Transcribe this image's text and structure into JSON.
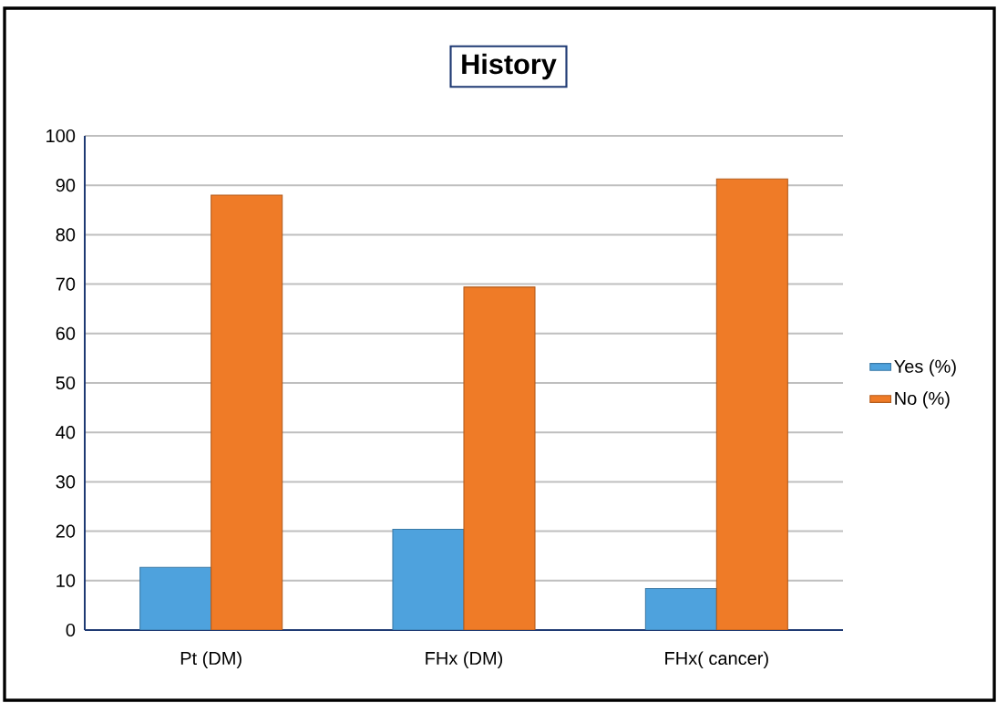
{
  "chart_data": {
    "type": "bar",
    "title": "History",
    "categories": [
      "Pt (DM)",
      "FHx (DM)",
      "FHx( cancer)"
    ],
    "series": [
      {
        "name": "Yes (%)",
        "color": "#4ea2dd",
        "values": [
          12.7,
          20.4,
          8.4
        ]
      },
      {
        "name": "No (%)",
        "color": "#ef7b27",
        "values": [
          88.0,
          69.4,
          91.3
        ]
      }
    ],
    "ylim": [
      0,
      100
    ],
    "yticks": [
      0,
      10,
      20,
      30,
      40,
      50,
      60,
      70,
      80,
      90,
      100
    ],
    "grid": "y",
    "legend": "right"
  }
}
